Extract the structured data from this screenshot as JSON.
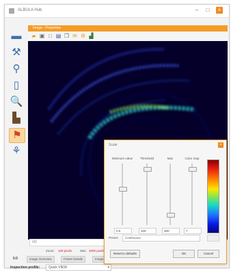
{
  "window": {
    "title": "ALBULA Hub"
  },
  "header": {
    "title": "Image - Properties"
  },
  "image_toolbar": {
    "icons": [
      "folder-icon",
      "image-icon",
      "new-window-icon",
      "save-icon",
      "copy-icon",
      "mail-icon",
      "settings-icon",
      "histogram-icon"
    ]
  },
  "left_toolbar": {
    "tools": [
      {
        "name": "ruler-tool-icon",
        "glyph": "▬"
      },
      {
        "name": "tool-icon",
        "glyph": "⚒"
      },
      {
        "name": "brush-tool-icon",
        "glyph": "⚲"
      },
      {
        "name": "image-tool-icon",
        "glyph": "▯"
      },
      {
        "name": "zoom-tool-icon",
        "glyph": "🔍"
      },
      {
        "name": "factory-tool-icon",
        "glyph": "▙"
      },
      {
        "name": "highlight-tool-icon",
        "glyph": "⚑"
      },
      {
        "name": "measure-tool-icon",
        "glyph": "⚘"
      }
    ],
    "active_index": 6
  },
  "bottom": {
    "input_value": "0/0",
    "status": {
      "label1": "Zoom:",
      "value1": "100 pixels",
      "label2": "Max:",
      "value2": "4000 pixels"
    },
    "tabs": {
      "label": "0.0",
      "items": [
        "Image Overview",
        "Frame Details",
        "Image Tools"
      ]
    },
    "profile": {
      "label": "Inspection profile:",
      "value": "Quick VIEW"
    }
  },
  "dialog": {
    "title": "Scale",
    "sliders": [
      {
        "label": "Minimum value",
        "value": "0.0",
        "level": 0.6
      },
      {
        "label": "Threshold",
        "value": "100",
        "level": 0.92
      },
      {
        "label": "Max",
        "value": "300",
        "level": 0.18
      },
      {
        "label": "Color map",
        "value": "7",
        "level": 0.92
      }
    ],
    "preset_label": "Preset:",
    "preset_value": "Continuous",
    "buttons": {
      "reset": "Reset to defaults",
      "ok": "OK",
      "cancel": "Cancel"
    }
  },
  "colors": {
    "accent": "#f39c28",
    "close": "#f08a24",
    "canvas_bg": "#04002a",
    "status_red": "#d62020"
  }
}
